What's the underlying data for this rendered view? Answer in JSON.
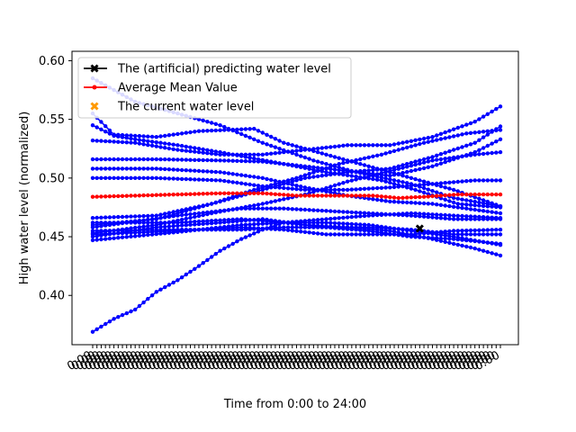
{
  "chart_data": {
    "type": "line",
    "title": "",
    "xlabel": "Time from 0:00 to 24:00",
    "ylabel": "High water level (normalized)",
    "xlim": [
      0,
      96
    ],
    "ylim": [
      0.358,
      0.608
    ],
    "y_ticks": [
      "0.40",
      "0.45",
      "0.50",
      "0.55",
      "0.60"
    ],
    "y_tick_values": [
      0.4,
      0.45,
      0.5,
      0.55,
      0.6
    ],
    "x_tick_count": 97,
    "x_tick_label": "0:00",
    "x_tick_rotation": -30,
    "grid": false,
    "legend": {
      "placement": "top-left",
      "entries": [
        {
          "label": "The (artificial) predicting water level",
          "color": "#000000",
          "marker": "x-thick"
        },
        {
          "label": "Average Mean Value",
          "color": "#ff0000",
          "marker": "dot"
        },
        {
          "label": "The current water level",
          "color": "#ff9900",
          "marker": "x-thick"
        }
      ]
    },
    "sample_series_color": "#0000ff",
    "series": [
      {
        "name": "",
        "anchors": [
          [
            0,
            0.585
          ],
          [
            10,
            0.565
          ],
          [
            20,
            0.555
          ],
          [
            30,
            0.545
          ],
          [
            40,
            0.53
          ],
          [
            52,
            0.515
          ],
          [
            62,
            0.505
          ],
          [
            75,
            0.495
          ],
          [
            85,
            0.483
          ],
          [
            96,
            0.476
          ]
        ]
      },
      {
        "name": "",
        "anchors": [
          [
            0,
            0.555
          ],
          [
            5,
            0.537
          ],
          [
            15,
            0.535
          ],
          [
            25,
            0.54
          ],
          [
            38,
            0.542
          ],
          [
            45,
            0.53
          ],
          [
            55,
            0.52
          ],
          [
            65,
            0.51
          ],
          [
            75,
            0.5
          ],
          [
            85,
            0.49
          ],
          [
            96,
            0.476
          ]
        ]
      },
      {
        "name": "",
        "anchors": [
          [
            0,
            0.545
          ],
          [
            5,
            0.536
          ],
          [
            10,
            0.533
          ],
          [
            20,
            0.528
          ],
          [
            30,
            0.522
          ],
          [
            45,
            0.512
          ],
          [
            55,
            0.505
          ],
          [
            68,
            0.498
          ],
          [
            76,
            0.49
          ],
          [
            86,
            0.478
          ],
          [
            96,
            0.475
          ]
        ]
      },
      {
        "name": "",
        "anchors": [
          [
            0,
            0.532
          ],
          [
            10,
            0.53
          ],
          [
            20,
            0.524
          ],
          [
            30,
            0.52
          ],
          [
            40,
            0.52
          ],
          [
            50,
            0.524
          ],
          [
            60,
            0.528
          ],
          [
            70,
            0.528
          ],
          [
            80,
            0.535
          ],
          [
            90,
            0.548
          ],
          [
            96,
            0.561
          ]
        ]
      },
      {
        "name": "",
        "anchors": [
          [
            0,
            0.516
          ],
          [
            15,
            0.516
          ],
          [
            30,
            0.515
          ],
          [
            40,
            0.514
          ],
          [
            50,
            0.51
          ],
          [
            60,
            0.506
          ],
          [
            70,
            0.502
          ],
          [
            80,
            0.51
          ],
          [
            90,
            0.522
          ],
          [
            96,
            0.533
          ]
        ]
      },
      {
        "name": "",
        "anchors": [
          [
            0,
            0.508
          ],
          [
            15,
            0.508
          ],
          [
            30,
            0.505
          ],
          [
            40,
            0.5
          ],
          [
            50,
            0.492
          ],
          [
            60,
            0.485
          ],
          [
            70,
            0.48
          ],
          [
            80,
            0.478
          ],
          [
            90,
            0.473
          ],
          [
            96,
            0.47
          ]
        ]
      },
      {
        "name": "",
        "anchors": [
          [
            0,
            0.5
          ],
          [
            15,
            0.5
          ],
          [
            30,
            0.498
          ],
          [
            40,
            0.493
          ],
          [
            50,
            0.49
          ],
          [
            60,
            0.49
          ],
          [
            70,
            0.492
          ],
          [
            80,
            0.495
          ],
          [
            90,
            0.498
          ],
          [
            96,
            0.498
          ]
        ]
      },
      {
        "name": "",
        "anchors": [
          [
            0,
            0.466
          ],
          [
            15,
            0.468
          ],
          [
            28,
            0.478
          ],
          [
            40,
            0.49
          ],
          [
            50,
            0.5
          ],
          [
            60,
            0.505
          ],
          [
            70,
            0.508
          ],
          [
            80,
            0.518
          ],
          [
            90,
            0.53
          ],
          [
            96,
            0.544
          ]
        ]
      },
      {
        "name": "",
        "anchors": [
          [
            0,
            0.46
          ],
          [
            15,
            0.465
          ],
          [
            28,
            0.478
          ],
          [
            38,
            0.49
          ],
          [
            48,
            0.5
          ],
          [
            58,
            0.512
          ],
          [
            68,
            0.52
          ],
          [
            78,
            0.53
          ],
          [
            88,
            0.538
          ],
          [
            96,
            0.541
          ]
        ]
      },
      {
        "name": "",
        "anchors": [
          [
            0,
            0.453
          ],
          [
            15,
            0.46
          ],
          [
            28,
            0.47
          ],
          [
            40,
            0.478
          ],
          [
            50,
            0.486
          ],
          [
            60,
            0.497
          ],
          [
            70,
            0.506
          ],
          [
            80,
            0.515
          ],
          [
            90,
            0.52
          ],
          [
            96,
            0.522
          ]
        ]
      },
      {
        "name": "",
        "anchors": [
          [
            0,
            0.458
          ],
          [
            20,
            0.468
          ],
          [
            35,
            0.474
          ],
          [
            45,
            0.474
          ],
          [
            55,
            0.472
          ],
          [
            65,
            0.47
          ],
          [
            75,
            0.468
          ],
          [
            85,
            0.465
          ],
          [
            96,
            0.465
          ]
        ]
      },
      {
        "name": "",
        "anchors": [
          [
            0,
            0.462
          ],
          [
            20,
            0.462
          ],
          [
            35,
            0.465
          ],
          [
            45,
            0.462
          ],
          [
            55,
            0.458
          ],
          [
            65,
            0.455
          ],
          [
            75,
            0.45
          ],
          [
            85,
            0.448
          ],
          [
            96,
            0.444
          ]
        ]
      },
      {
        "name": "",
        "anchors": [
          [
            0,
            0.452
          ],
          [
            20,
            0.455
          ],
          [
            35,
            0.458
          ],
          [
            45,
            0.456
          ],
          [
            55,
            0.452
          ],
          [
            65,
            0.452
          ],
          [
            75,
            0.452
          ],
          [
            85,
            0.455
          ],
          [
            96,
            0.456
          ]
        ]
      },
      {
        "name": "",
        "anchors": [
          [
            0,
            0.455
          ],
          [
            20,
            0.456
          ],
          [
            35,
            0.456
          ],
          [
            45,
            0.458
          ],
          [
            55,
            0.458
          ],
          [
            65,
            0.458
          ],
          [
            75,
            0.456
          ],
          [
            85,
            0.452
          ],
          [
            96,
            0.452
          ]
        ]
      },
      {
        "name": "",
        "anchors": [
          [
            0,
            0.447
          ],
          [
            20,
            0.454
          ],
          [
            35,
            0.46
          ],
          [
            45,
            0.462
          ],
          [
            55,
            0.462
          ],
          [
            65,
            0.46
          ],
          [
            75,
            0.455
          ],
          [
            85,
            0.45
          ],
          [
            96,
            0.443
          ]
        ]
      },
      {
        "name": "",
        "anchors": [
          [
            0,
            0.45
          ],
          [
            15,
            0.458
          ],
          [
            30,
            0.462
          ],
          [
            40,
            0.465
          ],
          [
            50,
            0.46
          ],
          [
            60,
            0.458
          ],
          [
            70,
            0.455
          ],
          [
            80,
            0.448
          ],
          [
            90,
            0.44
          ],
          [
            96,
            0.434
          ]
        ]
      },
      {
        "name": "",
        "anchors": [
          [
            0,
            0.369
          ],
          [
            5,
            0.38
          ],
          [
            10,
            0.388
          ],
          [
            15,
            0.403
          ],
          [
            20,
            0.413
          ],
          [
            25,
            0.425
          ],
          [
            30,
            0.438
          ],
          [
            35,
            0.448
          ],
          [
            40,
            0.456
          ],
          [
            45,
            0.462
          ],
          [
            55,
            0.465
          ],
          [
            65,
            0.468
          ],
          [
            75,
            0.47
          ],
          [
            85,
            0.468
          ],
          [
            96,
            0.466
          ]
        ]
      }
    ],
    "average_mean_value": {
      "name": "Average Mean Value",
      "color": "#ff0000",
      "anchors": [
        [
          0,
          0.484
        ],
        [
          10,
          0.485
        ],
        [
          20,
          0.486
        ],
        [
          30,
          0.487
        ],
        [
          40,
          0.487
        ],
        [
          48,
          0.485
        ],
        [
          56,
          0.485
        ],
        [
          66,
          0.485
        ],
        [
          72,
          0.483
        ],
        [
          78,
          0.484
        ],
        [
          86,
          0.486
        ],
        [
          96,
          0.486
        ]
      ]
    },
    "predicting_water_level": {
      "name": "The (artificial) predicting water level",
      "color": "#000000",
      "x": 77,
      "y": 0.457
    }
  }
}
